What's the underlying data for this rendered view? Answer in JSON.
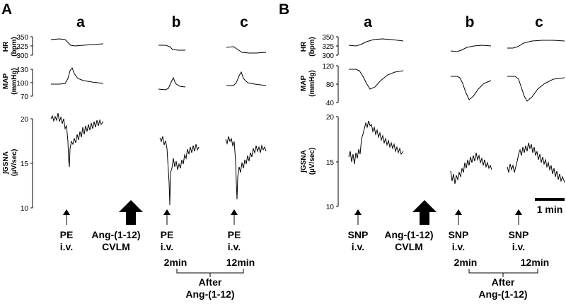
{
  "panels": [
    {
      "label": "A",
      "conditions": [
        "a",
        "b",
        "c"
      ],
      "hr": {
        "label": "HR",
        "unit": "(bpm)",
        "ticks": [
          "350",
          "325",
          "300"
        ]
      },
      "map": {
        "label": "MAP",
        "unit": "(mmHg)",
        "ticks": [
          "130",
          "100",
          "70"
        ]
      },
      "gsna": {
        "label": "∫GSNA",
        "unit": "(µV/sec)",
        "ticks": [
          "20",
          "15",
          "10"
        ]
      },
      "stimulus": [
        "PE",
        "i.v."
      ],
      "drug": [
        "Ang-(1-12)",
        "CVLM"
      ],
      "times": [
        "2min",
        "12min"
      ],
      "after": [
        "After",
        "Ang-(1-12)"
      ]
    },
    {
      "label": "B",
      "conditions": [
        "a",
        "b",
        "c"
      ],
      "hr": {
        "label": "HR",
        "unit": "(bpm)",
        "ticks": [
          "350",
          "325",
          "300"
        ]
      },
      "map": {
        "label": "MAP",
        "unit": "(mmHg)",
        "ticks": [
          "120",
          "80",
          "40"
        ]
      },
      "gsna": {
        "label": "∫GSNA",
        "unit": "(µV/sec)",
        "ticks": [
          "20",
          "15",
          "10"
        ]
      },
      "stimulus": [
        "SNP",
        "i.v."
      ],
      "drug": [
        "Ang-(1-12)",
        "CVLM"
      ],
      "times": [
        "2min",
        "12min"
      ],
      "after": [
        "After",
        "Ang-(1-12)"
      ],
      "scale_bar": "1 min"
    }
  ]
}
